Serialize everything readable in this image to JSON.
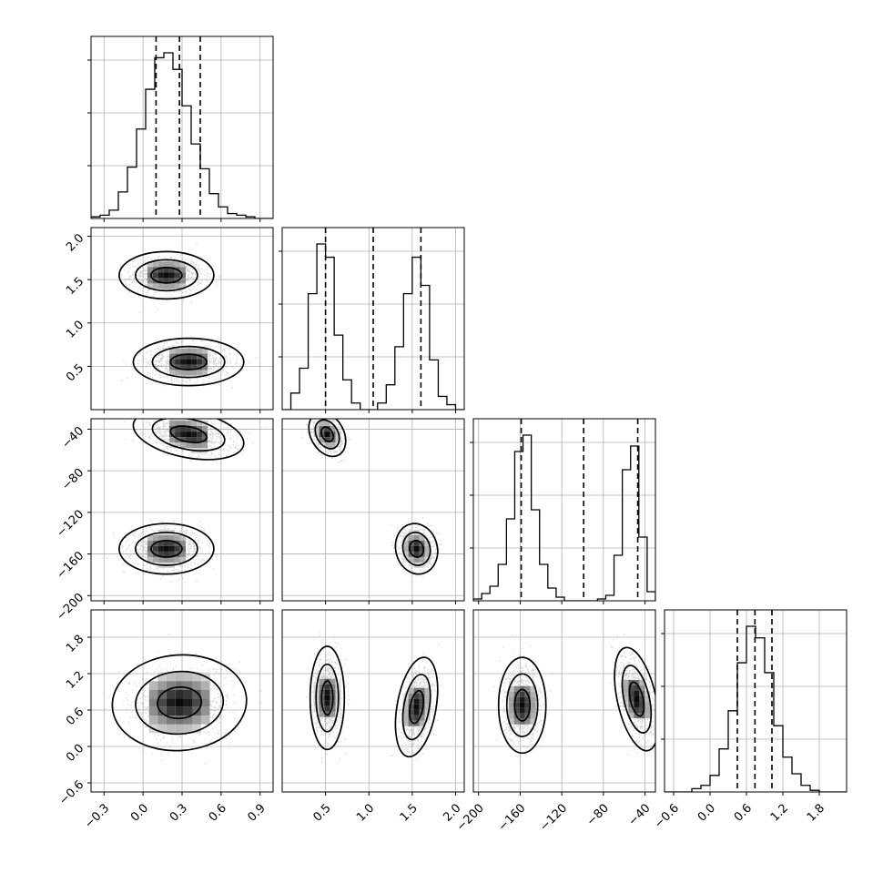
{
  "chart_data": {
    "type": "corner",
    "grid": true,
    "quantiles": [
      0.16,
      0.5,
      0.84
    ],
    "axes": [
      {
        "range": [
          -0.4,
          1.0
        ],
        "ticks": [
          -0.3,
          0.0,
          0.3,
          0.6,
          0.9
        ],
        "tick_labels": [
          "−0.3",
          "0.0",
          "0.3",
          "0.6",
          "0.9"
        ],
        "quantile_values": [
          0.1,
          0.28,
          0.44
        ],
        "hist": [
          0.01,
          0.02,
          0.05,
          0.16,
          0.31,
          0.54,
          0.78,
          0.97,
          1.0,
          0.9,
          0.68,
          0.45,
          0.3,
          0.15,
          0.07,
          0.03,
          0.02,
          0.01,
          0.0,
          0.0
        ]
      },
      {
        "range": [
          0.0,
          2.1
        ],
        "ticks": [
          0.5,
          1.0,
          1.5,
          2.0
        ],
        "tick_labels": [
          "0.5",
          "1.0",
          "1.5",
          "2.0"
        ],
        "quantile_values": [
          0.5,
          1.05,
          1.6
        ],
        "hist": [
          0.0,
          0.1,
          0.25,
          0.7,
          1.0,
          0.92,
          0.45,
          0.18,
          0.04,
          0.0,
          0.0,
          0.04,
          0.15,
          0.38,
          0.7,
          0.92,
          0.75,
          0.3,
          0.08,
          0.03,
          0.0
        ]
      },
      {
        "range": [
          -205,
          -30
        ],
        "ticks": [
          -200,
          -160,
          -120,
          -80,
          -40
        ],
        "tick_labels": [
          "−200",
          "−160",
          "−120",
          "−80",
          "−40"
        ],
        "quantile_values": [
          -159,
          -99,
          -47
        ],
        "hist": [
          0.01,
          0.04,
          0.08,
          0.2,
          0.45,
          0.82,
          0.91,
          0.5,
          0.2,
          0.07,
          0.02,
          0.0,
          0.0,
          0.0,
          0.0,
          0.01,
          0.03,
          0.25,
          0.72,
          0.85,
          0.35,
          0.05
        ]
      },
      {
        "range": [
          -0.75,
          2.25
        ],
        "ticks": [
          -0.6,
          0.0,
          0.6,
          1.2,
          1.8
        ],
        "tick_labels": [
          "−0.6",
          "0.0",
          "0.6",
          "1.2",
          "1.8"
        ],
        "quantile_values": [
          0.45,
          0.74,
          1.02
        ],
        "hist": [
          0.0,
          0.0,
          0.0,
          0.02,
          0.04,
          0.1,
          0.26,
          0.49,
          0.78,
          1.0,
          0.93,
          0.72,
          0.4,
          0.21,
          0.11,
          0.04,
          0.01,
          0.0,
          0.0,
          0.0
        ]
      }
    ],
    "contour_levels": [
      0.39,
      0.86,
      0.99
    ],
    "modes": [
      {
        "pair": [
          1,
          0
        ],
        "center": [
          0.18,
          1.55
        ],
        "sigma": [
          0.12,
          0.09
        ],
        "rho": 0.0
      },
      {
        "pair": [
          1,
          0
        ],
        "center": [
          0.35,
          0.55
        ],
        "sigma": [
          0.14,
          0.09
        ],
        "rho": 0.0
      },
      {
        "pair": [
          2,
          0
        ],
        "center": [
          0.35,
          -45
        ],
        "sigma": [
          0.14,
          8.0
        ],
        "rho": -0.35
      },
      {
        "pair": [
          2,
          0
        ],
        "center": [
          0.18,
          -155
        ],
        "sigma": [
          0.12,
          8.0
        ],
        "rho": 0.0
      },
      {
        "pair": [
          2,
          1
        ],
        "center": [
          0.52,
          -45
        ],
        "sigma": [
          0.07,
          7.0
        ],
        "rho": -0.3
      },
      {
        "pair": [
          2,
          1
        ],
        "center": [
          1.55,
          -155
        ],
        "sigma": [
          0.08,
          8.0
        ],
        "rho": -0.1
      },
      {
        "pair": [
          3,
          0
        ],
        "center": [
          0.28,
          0.72
        ],
        "sigma": [
          0.17,
          0.26
        ],
        "rho": 0.05
      },
      {
        "pair": [
          3,
          1
        ],
        "center": [
          0.52,
          0.8
        ],
        "sigma": [
          0.065,
          0.28
        ],
        "rho": 0.0
      },
      {
        "pair": [
          3,
          1
        ],
        "center": [
          1.55,
          0.65
        ],
        "sigma": [
          0.08,
          0.27
        ],
        "rho": 0.35
      },
      {
        "pair": [
          3,
          2
        ],
        "center": [
          -158,
          0.68
        ],
        "sigma": [
          7.5,
          0.26
        ],
        "rho": 0.0
      },
      {
        "pair": [
          3,
          2
        ],
        "center": [
          -48,
          0.78
        ],
        "sigma": [
          7.0,
          0.28
        ],
        "rho": -0.45
      }
    ]
  }
}
